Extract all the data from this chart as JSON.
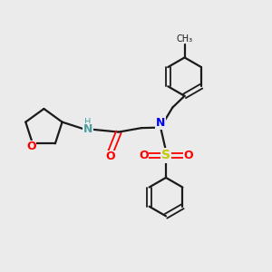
{
  "bg_color": "#ebebeb",
  "bond_color": "#1a1a1a",
  "o_color": "#ff0000",
  "n_color": "#0000ff",
  "nh_color": "#4aa0a0",
  "s_color": "#c8c800",
  "figsize": [
    3.0,
    3.0
  ],
  "dpi": 100,
  "xlim": [
    0,
    10
  ],
  "ylim": [
    0,
    10
  ]
}
